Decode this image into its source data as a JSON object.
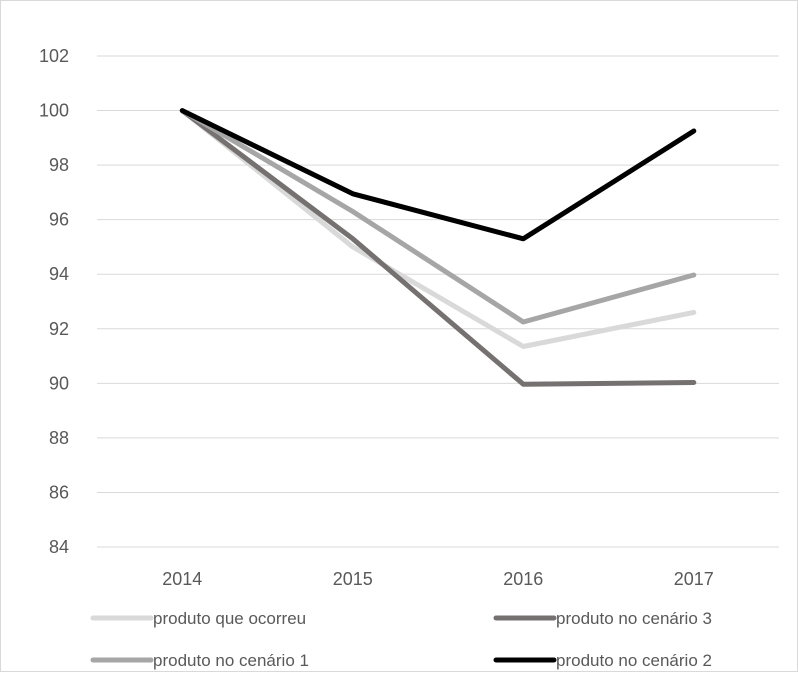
{
  "chart_data": {
    "type": "line",
    "categories": [
      "2014",
      "2015",
      "2016",
      "2017"
    ],
    "y_ticks": [
      "102",
      "100",
      "98",
      "96",
      "94",
      "92",
      "90",
      "88",
      "86",
      "84"
    ],
    "ylim": [
      84,
      102
    ],
    "grid": true,
    "legend_position": "bottom",
    "series": [
      {
        "name": "produto que ocorreu",
        "values": [
          100,
          95.0,
          91.35,
          92.6
        ],
        "color": "#d9d9d9"
      },
      {
        "name": "produto no cenário 3",
        "values": [
          100,
          95.3,
          89.97,
          90.03
        ],
        "color": "#767171"
      },
      {
        "name": "produto no cenário 1",
        "values": [
          100,
          96.3,
          92.25,
          93.97
        ],
        "color": "#a6a6a6"
      },
      {
        "name": "produto no cenário 2",
        "values": [
          100,
          96.95,
          95.3,
          99.25
        ],
        "color": "#000000"
      }
    ]
  }
}
